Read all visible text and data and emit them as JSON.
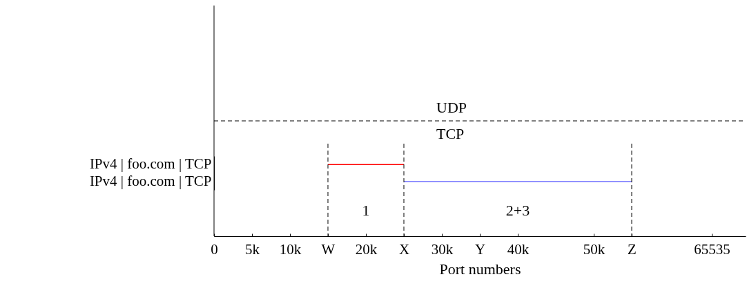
{
  "chart_data": {
    "type": "bar",
    "orientation": "horizontal",
    "xlabel": "Port numbers",
    "categories": [
      "IPv4 | foo.com | TCP",
      "IPv4 | foo.com | TCP"
    ],
    "base": [
      15000,
      25000
    ],
    "values": [
      10000,
      30000
    ],
    "colors": [
      "#ff0000",
      "#8080ff"
    ],
    "xlim": [
      0,
      70000
    ],
    "xticks": [
      0,
      {
        "value": 5000,
        "label": "5k"
      },
      {
        "value": 10000,
        "label": "10k"
      },
      {
        "value": 15000,
        "label": "W"
      },
      {
        "value": 20000,
        "label": "20k"
      },
      {
        "value": 25000,
        "label": "X"
      },
      {
        "value": 30000,
        "label": "30k"
      },
      {
        "value": 35000,
        "label": "Y"
      },
      {
        "value": 40000,
        "label": "40k"
      },
      {
        "value": 50000,
        "label": "50k"
      },
      {
        "value": 55000,
        "label": "Z"
      },
      65535
    ],
    "ref_lines": [
      {
        "axis": "x",
        "value": 15000,
        "line_style": "dashed"
      },
      {
        "axis": "x",
        "value": 25000,
        "line_style": "dashed"
      },
      {
        "axis": "x",
        "value": 55000,
        "line_style": "dashed"
      },
      {
        "axis": "y",
        "line_style": "dashed"
      }
    ],
    "annotations": [
      "UDP",
      "TCP",
      "1",
      "2+3"
    ]
  }
}
